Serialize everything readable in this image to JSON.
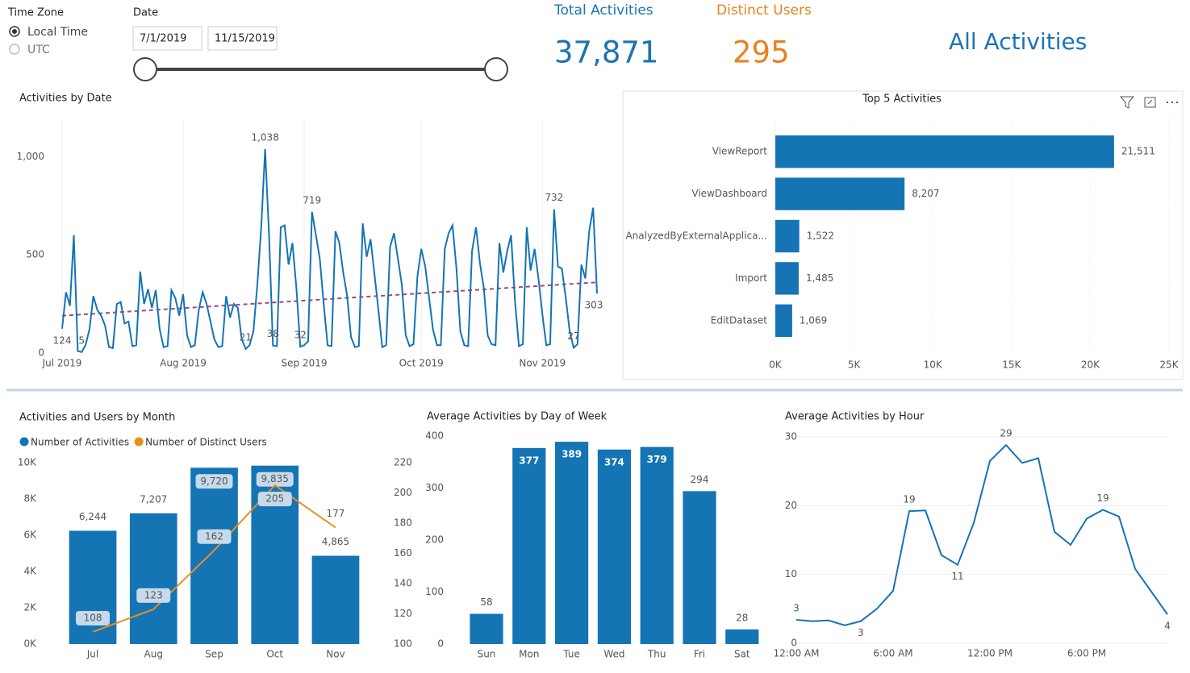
{
  "filters": {
    "time_zone": {
      "label": "Time Zone",
      "options": [
        "Local Time",
        "UTC"
      ]
    },
    "date": {
      "label": "Date",
      "start": "7/1/2019",
      "end": "11/15/2019"
    }
  },
  "cards": [
    {
      "label": "Total Activities",
      "value": "37,871",
      "color": "#1a74b3"
    },
    {
      "label": "Distinct Users",
      "value": "295",
      "color": "#e8821e"
    }
  ],
  "page_title": "All Activities",
  "chart_data": [
    {
      "type": "line",
      "title": "Activities by Date",
      "color": "#1474b4",
      "grid": "x",
      "x": [
        0,
        1,
        2,
        3,
        4,
        5,
        6,
        7,
        8,
        9,
        10,
        11,
        12,
        13,
        14,
        15,
        16,
        17,
        18,
        19,
        20,
        21,
        22,
        23,
        24,
        25,
        26,
        27,
        28,
        29,
        30,
        31,
        32,
        33,
        34,
        35,
        36,
        37,
        38,
        39,
        40,
        41,
        42,
        43,
        44,
        45,
        46,
        47,
        48,
        49,
        50,
        51,
        52,
        53,
        54,
        55,
        56,
        57,
        58,
        59,
        60,
        61,
        62,
        63,
        64,
        65,
        66,
        67,
        68,
        69,
        70,
        71,
        72,
        73,
        74,
        75,
        76,
        77,
        78,
        79,
        80,
        81,
        82,
        83,
        84,
        85,
        86,
        87,
        88,
        89,
        90,
        91,
        92,
        93,
        94,
        95,
        96,
        97,
        98,
        99,
        100,
        101,
        102,
        103,
        104,
        105,
        106,
        107,
        108,
        109,
        110,
        111,
        112,
        113,
        114,
        115,
        116,
        117,
        118,
        119,
        120,
        121,
        122,
        123,
        124,
        125,
        126,
        127,
        128,
        129,
        130,
        131,
        132,
        133,
        134,
        135,
        136,
        137
      ],
      "values": [
        124,
        310,
        240,
        600,
        10,
        5,
        40,
        120,
        290,
        220,
        190,
        140,
        30,
        25,
        250,
        260,
        150,
        160,
        35,
        40,
        415,
        250,
        325,
        230,
        320,
        120,
        30,
        35,
        320,
        280,
        190,
        300,
        90,
        30,
        40,
        220,
        310,
        250,
        160,
        70,
        30,
        35,
        290,
        180,
        250,
        230,
        70,
        21,
        40,
        110,
        350,
        640,
        1038,
        600,
        38,
        35,
        640,
        650,
        450,
        560,
        330,
        32,
        40,
        60,
        719,
        600,
        480,
        250,
        40,
        35,
        620,
        560,
        410,
        290,
        80,
        30,
        35,
        660,
        490,
        580,
        400,
        220,
        30,
        40,
        540,
        610,
        480,
        350,
        90,
        35,
        45,
        390,
        530,
        440,
        280,
        120,
        40,
        40,
        530,
        610,
        650,
        430,
        110,
        40,
        35,
        520,
        640,
        460,
        330,
        90,
        45,
        40,
        560,
        410,
        520,
        600,
        260,
        35,
        45,
        640,
        420,
        530,
        380,
        200,
        40,
        45,
        732,
        440,
        430,
        280,
        110,
        27,
        45,
        450,
        380,
        620,
        740,
        303
      ],
      "value_labels": {
        "0": "124",
        "5": "5",
        "47": "21",
        "52": "1,038",
        "54": "38",
        "61": "32",
        "64": "719",
        "126": "732",
        "131": "27",
        "137": "303"
      },
      "trend_line": {
        "start": 190,
        "end": 360,
        "color": "#a0468c"
      },
      "xlim": [
        0,
        137
      ],
      "xticks": [
        {
          "value": 0,
          "label": "Jul 2019"
        },
        {
          "value": 31,
          "label": "Aug 2019"
        },
        {
          "value": 62,
          "label": "Sep 2019"
        },
        {
          "value": 92,
          "label": "Oct 2019"
        },
        {
          "value": 123,
          "label": "Nov 2019"
        }
      ],
      "ylim": [
        0,
        1190
      ],
      "yticks": [
        0,
        500,
        {
          "value": 1000,
          "label": "1,000"
        }
      ]
    },
    {
      "type": "hbar",
      "title": "Top 5 Activities",
      "color": "#1474b4",
      "grid": "x",
      "categories": [
        "ViewReport",
        "ViewDashboard",
        "AnalyzedByExternalApplica...",
        "Import",
        "EditDataset"
      ],
      "values": [
        21511,
        8207,
        1522,
        1485,
        1069
      ],
      "value_labels": [
        "21,511",
        "8,207",
        "1,522",
        "1,485",
        "1,069"
      ],
      "xlim": [
        0,
        25000
      ],
      "xticks": [
        {
          "value": 0,
          "label": "0K"
        },
        {
          "value": 5000,
          "label": "5K"
        },
        {
          "value": 10000,
          "label": "10K"
        },
        {
          "value": 15000,
          "label": "15K"
        },
        {
          "value": 20000,
          "label": "20K"
        },
        {
          "value": 25000,
          "label": "25K"
        }
      ]
    },
    {
      "type": "combo",
      "title": "Activities and Users by Month",
      "categories": [
        "Jul",
        "Aug",
        "Sep",
        "Oct",
        "Nov"
      ],
      "series": [
        {
          "name": "Number of Activities",
          "color": "#1474b4",
          "values": [
            6244,
            7207,
            9720,
            9835,
            4865
          ],
          "value_labels": [
            "6,244",
            "7,207",
            "9,720",
            "9,835",
            "4,865"
          ]
        },
        {
          "name": "Number of Distinct Users",
          "color": "#e8901e",
          "axis": "y2",
          "values": [
            108,
            123,
            162,
            205,
            177
          ]
        }
      ],
      "ylim": [
        0,
        10000
      ],
      "yticks": [
        {
          "value": 0,
          "label": "0K"
        },
        {
          "value": 2000,
          "label": "2K"
        },
        {
          "value": 4000,
          "label": "4K"
        },
        {
          "value": 6000,
          "label": "6K"
        },
        {
          "value": 8000,
          "label": "8K"
        },
        {
          "value": 10000,
          "label": "10K"
        }
      ],
      "y2lim": [
        100,
        220
      ],
      "y2ticks": [
        100,
        120,
        140,
        160,
        180,
        200,
        220
      ]
    },
    {
      "type": "bar",
      "title": "Average Activities by Day of Week",
      "color": "#1474b4",
      "categories": [
        "Sun",
        "Mon",
        "Tue",
        "Wed",
        "Thu",
        "Fri",
        "Sat"
      ],
      "values": [
        58,
        377,
        389,
        374,
        379,
        294,
        28
      ],
      "ylim": [
        0,
        400
      ],
      "yticks": [
        0,
        100,
        200,
        300,
        400
      ]
    },
    {
      "type": "line",
      "title": "Average Activities by Hour",
      "color": "#1474b4",
      "grid": "y",
      "x": [
        0,
        1,
        2,
        3,
        4,
        5,
        6,
        7,
        8,
        9,
        10,
        11,
        12,
        13,
        14,
        15,
        16,
        17,
        18,
        19,
        20,
        21,
        22,
        23
      ],
      "values": [
        3.4,
        3.2,
        3.3,
        2.6,
        3.2,
        5.0,
        7.6,
        19.2,
        19.3,
        12.8,
        11.4,
        17.5,
        26.5,
        28.8,
        26.2,
        26.9,
        16.2,
        14.3,
        18.1,
        19.4,
        18.4,
        10.8,
        7.5,
        4.2
      ],
      "value_labels": {
        "0": "3",
        "4": "3",
        "7": "19",
        "10": "11",
        "13": "29",
        "19": "19",
        "23": "4"
      },
      "xlim": [
        0,
        23
      ],
      "xticks": [
        {
          "value": 0,
          "label": "12:00 AM"
        },
        {
          "value": 6,
          "label": "6:00 AM"
        },
        {
          "value": 12,
          "label": "12:00 PM"
        },
        {
          "value": 18,
          "label": "6:00 PM"
        }
      ],
      "ylim": [
        0,
        30
      ],
      "yticks": [
        0,
        10,
        20,
        30
      ]
    }
  ]
}
